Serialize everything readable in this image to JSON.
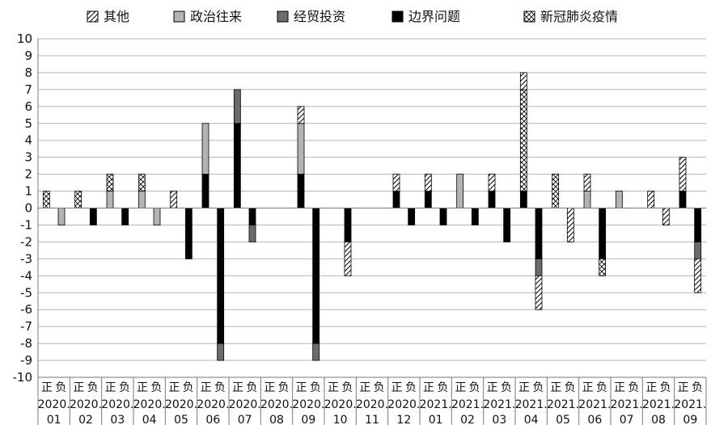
{
  "chart_data": {
    "type": "bar",
    "stacked": true,
    "ylim": [
      -10,
      10
    ],
    "yticks": [
      10,
      9,
      8,
      7,
      6,
      5,
      4,
      3,
      2,
      1,
      0,
      -1,
      -2,
      -3,
      -4,
      -5,
      -6,
      -7,
      -8,
      -9,
      -10
    ],
    "grid": true,
    "legend_position": "top",
    "sub_labels": [
      "正",
      "负"
    ],
    "months": [
      {
        "label": "2020.01"
      },
      {
        "label": "2020.02"
      },
      {
        "label": "2020.03"
      },
      {
        "label": "2020.04"
      },
      {
        "label": "2020.05"
      },
      {
        "label": "2020.06"
      },
      {
        "label": "2020.07"
      },
      {
        "label": "2020.08"
      },
      {
        "label": "2020.09"
      },
      {
        "label": "2020.10"
      },
      {
        "label": "2020.11"
      },
      {
        "label": "2020.12"
      },
      {
        "label": "2021.01"
      },
      {
        "label": "2021.02"
      },
      {
        "label": "2021.03"
      },
      {
        "label": "2021.04"
      },
      {
        "label": "2021.05"
      },
      {
        "label": "2021.06"
      },
      {
        "label": "2021.07"
      },
      {
        "label": "2021.08"
      },
      {
        "label": "2021.09"
      }
    ],
    "series": [
      {
        "name": "边界问题",
        "key": "border",
        "pattern": "solid-black",
        "pos": [
          0,
          0,
          0,
          0,
          0,
          2,
          5,
          0,
          2,
          0,
          0,
          1,
          1,
          0,
          1,
          1,
          0,
          0,
          0,
          0,
          1
        ],
        "neg": [
          0,
          1,
          1,
          0,
          3,
          8,
          1,
          0,
          8,
          2,
          0,
          1,
          1,
          1,
          2,
          3,
          0,
          3,
          0,
          0,
          2
        ]
      },
      {
        "name": "经贸投资",
        "key": "trade",
        "pattern": "solid-darkgray",
        "pos": [
          0,
          0,
          0,
          0,
          0,
          0,
          2,
          0,
          0,
          0,
          0,
          0,
          0,
          0,
          0,
          0,
          0,
          0,
          0,
          0,
          0
        ],
        "neg": [
          0,
          0,
          0,
          0,
          0,
          1,
          1,
          0,
          1,
          0,
          0,
          0,
          0,
          0,
          0,
          1,
          0,
          0,
          0,
          0,
          1
        ]
      },
      {
        "name": "政治往来",
        "key": "politics",
        "pattern": "solid-lightgray",
        "pos": [
          0,
          0,
          1,
          1,
          0,
          3,
          0,
          0,
          3,
          0,
          0,
          0,
          0,
          2,
          0,
          0,
          0,
          1,
          1,
          0,
          0
        ],
        "neg": [
          1,
          0,
          0,
          1,
          0,
          0,
          0,
          0,
          0,
          0,
          0,
          0,
          0,
          0,
          0,
          0,
          0,
          0,
          0,
          0,
          0
        ]
      },
      {
        "name": "新冠肺炎疫情",
        "key": "covid",
        "pattern": "crosshatch",
        "pos": [
          1,
          1,
          1,
          1,
          0,
          0,
          0,
          0,
          0,
          0,
          0,
          0,
          0,
          0,
          0,
          6,
          2,
          0,
          0,
          0,
          0
        ],
        "neg": [
          0,
          0,
          0,
          0,
          0,
          0,
          0,
          0,
          0,
          0,
          0,
          0,
          0,
          0,
          0,
          0,
          0,
          1,
          0,
          0,
          0
        ]
      },
      {
        "name": "其他",
        "key": "other",
        "pattern": "diagonal",
        "pos": [
          0,
          0,
          0,
          0,
          1,
          0,
          0,
          0,
          1,
          0,
          0,
          1,
          1,
          0,
          1,
          1,
          0,
          1,
          0,
          1,
          2
        ],
        "neg": [
          0,
          0,
          0,
          0,
          0,
          0,
          0,
          0,
          0,
          2,
          0,
          0,
          0,
          0,
          0,
          2,
          2,
          0,
          0,
          1,
          2
        ]
      }
    ],
    "legend_order": [
      "other",
      "politics",
      "trade",
      "border",
      "covid"
    ]
  }
}
